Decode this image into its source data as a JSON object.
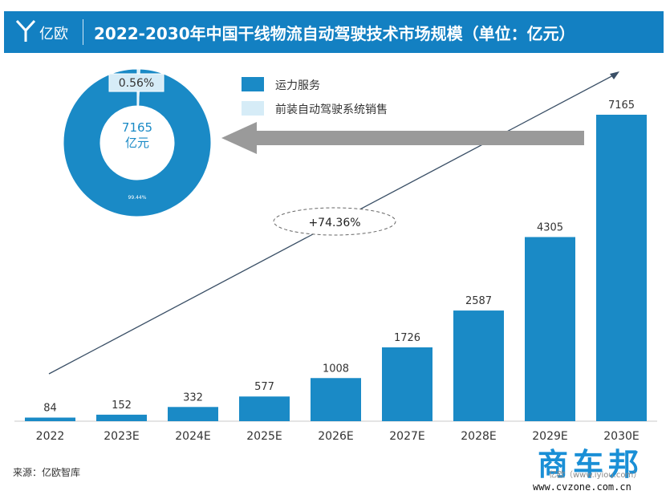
{
  "header": {
    "brand": "亿欧",
    "title": "2022-2030年中国干线物流自动驾驶技术市场规模（单位：亿元）"
  },
  "colors": {
    "header_bg": "#1380c2",
    "bar": "#1a8ac6",
    "donut_main": "#1a8ac6",
    "donut_small": "#d6ecf7",
    "arrow": "#9a9a9a"
  },
  "legend": [
    {
      "label": "运力服务",
      "color": "#1a8ac6"
    },
    {
      "label": "前装自动驾驶系统销售",
      "color": "#d6ecf7"
    }
  ],
  "chart_data": [
    {
      "type": "bar",
      "categories": [
        "2022",
        "2023E",
        "2024E",
        "2025E",
        "2026E",
        "2027E",
        "2028E",
        "2029E",
        "2030E"
      ],
      "values": [
        84,
        152,
        332,
        577,
        1008,
        1726,
        2587,
        4305,
        7165
      ],
      "data_labels": [
        "84",
        "152",
        "332",
        "577",
        "1008",
        "1726",
        "2587",
        "4305",
        "7165"
      ],
      "ylim": [
        0,
        7165
      ],
      "annotation": "+74.36%",
      "grid": false
    },
    {
      "type": "pie",
      "labels": [
        "运力服务",
        "前装自动驾驶系统销售"
      ],
      "values": [
        99.44,
        0.56
      ],
      "slice_labels": [
        "99.44%",
        "0.56%"
      ],
      "center_value": "7165",
      "center_unit": "亿元"
    }
  ],
  "footer": {
    "source": "来源：亿欧智库"
  },
  "watermark": {
    "big": "商车邦",
    "small": "亿欧（www.iyiou.com）",
    "url": "www.cvzone.com.cn"
  }
}
